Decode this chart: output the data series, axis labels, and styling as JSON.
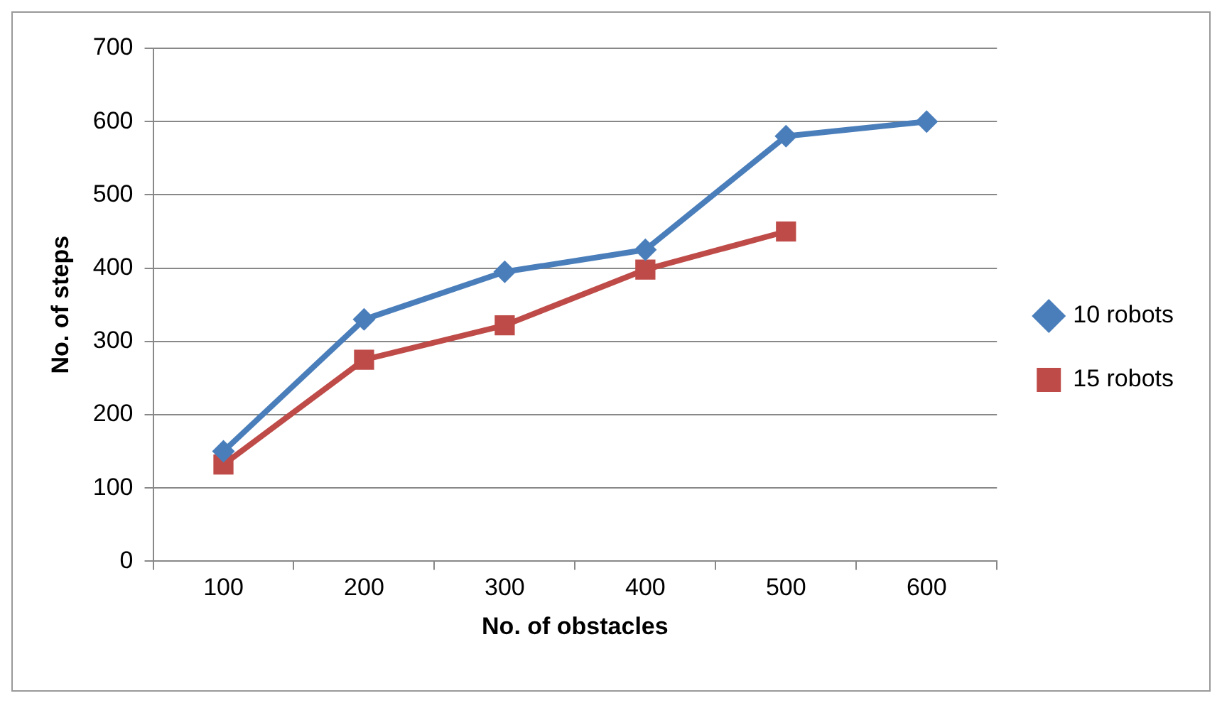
{
  "chart_data": {
    "type": "line",
    "xlabel": "No. of obstacles",
    "ylabel": "No. of steps",
    "categories": [
      "100",
      "200",
      "300",
      "400",
      "500",
      "600"
    ],
    "series": [
      {
        "name": "10 robots",
        "color": "#4a7ebb",
        "marker": "diamond",
        "values": [
          150,
          330,
          395,
          425,
          580,
          600
        ]
      },
      {
        "name": "15 robots",
        "color": "#be4b48",
        "marker": "square",
        "values": [
          132,
          275,
          322,
          398,
          450,
          null
        ]
      }
    ],
    "ylim": [
      0,
      700
    ],
    "yticks": [
      0,
      100,
      200,
      300,
      400,
      500,
      600,
      700
    ],
    "grid": "y",
    "legend": "right",
    "line_style": "solid"
  }
}
